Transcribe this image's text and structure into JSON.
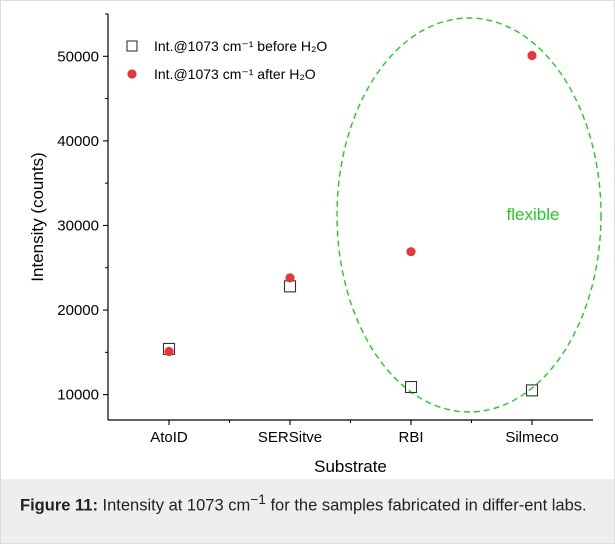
{
  "chart_data": {
    "type": "scatter",
    "xlabel": "Substrate",
    "ylabel": "Intensity (counts)",
    "categories": [
      "AtoID",
      "SERSitve",
      "RBI",
      "Silmeco"
    ],
    "ylim": [
      7000,
      55000
    ],
    "yticks": [
      10000,
      20000,
      30000,
      40000,
      50000
    ],
    "grid": false,
    "legend_position": "top-left",
    "series": [
      {
        "name": "Int.@1073 cm⁻¹ before H₂O",
        "marker": "open-square",
        "color": "#333333",
        "values": [
          15400,
          22800,
          10900,
          10500
        ]
      },
      {
        "name": "Int.@1073 cm⁻¹ after H₂O",
        "marker": "filled-circle",
        "color": "#e8373c",
        "values": [
          15100,
          23800,
          26900,
          50100
        ]
      }
    ],
    "annotation": {
      "text": "flexible",
      "color": "#22cc22",
      "shape": "dashed-ellipse"
    }
  },
  "caption": {
    "label": "Figure 11:",
    "text_before_sup": " Intensity at 1073 cm",
    "superscript": "−1",
    "text_after_sup": " for the samples fabricated in differ-ent labs."
  }
}
